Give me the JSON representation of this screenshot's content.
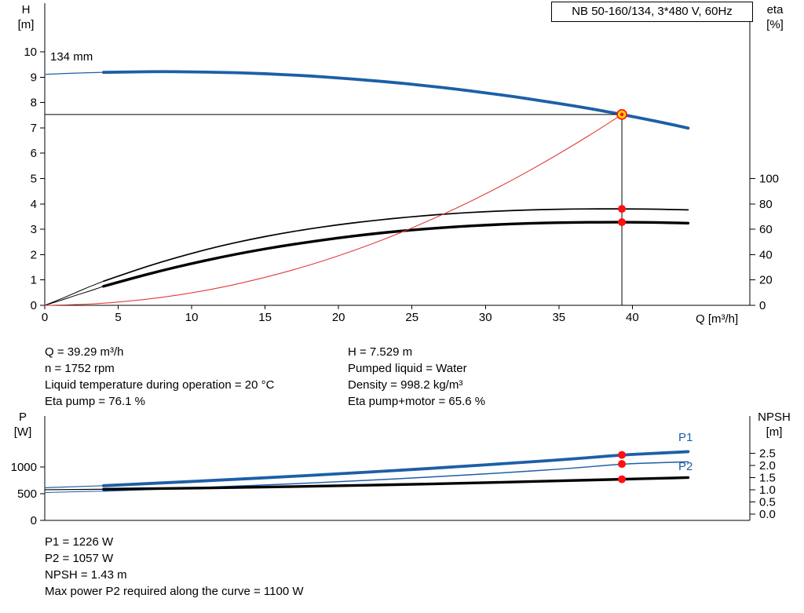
{
  "colors": {
    "blue": "#1d5fa7",
    "black": "#000000",
    "red_curve": "#e23b3b",
    "dot": "#ff0f0f",
    "duty_fill": "#ffd400",
    "axis": "#000000"
  },
  "info": {
    "top_left": [
      "Q = 39.29 m³/h",
      "n = 1752 rpm",
      "Liquid temperature during operation = 20 °C",
      "Eta pump = 76.1 %"
    ],
    "top_right": [
      "H = 7.529 m",
      "Pumped liquid = Water",
      "Density = 998.2 kg/m³",
      "Eta pump+motor = 65.6 %"
    ],
    "bottom": [
      "P1 = 1226 W",
      "P2 = 1057 W",
      "NPSH = 1.43 m",
      "Max power P2 required along the curve = 1100 W"
    ]
  },
  "chart_data": [
    {
      "type": "line",
      "id": "qh",
      "title": "NB 50-160/134, 3*480 V, 60Hz",
      "xlabel": "Q [m³/h]",
      "ylabel_left": [
        "H",
        "[m]"
      ],
      "ylabel_right": [
        "eta",
        "[%]"
      ],
      "xlim": [
        0,
        48
      ],
      "ylim_left": [
        0,
        11.92
      ],
      "ylim_right": [
        0,
        238.4
      ],
      "x_ticks": [
        {
          "v": 0,
          "t": "0"
        },
        {
          "v": 5,
          "t": "5"
        },
        {
          "v": 10,
          "t": "10"
        },
        {
          "v": 15,
          "t": "15"
        },
        {
          "v": 20,
          "t": "20"
        },
        {
          "v": 25,
          "t": "25"
        },
        {
          "v": 30,
          "t": "30"
        },
        {
          "v": 35,
          "t": "35"
        },
        {
          "v": 40,
          "t": "40"
        }
      ],
      "y_ticks_left": [
        {
          "v": 0,
          "t": "0"
        },
        {
          "v": 1,
          "t": "1"
        },
        {
          "v": 2,
          "t": "2"
        },
        {
          "v": 3,
          "t": "3"
        },
        {
          "v": 4,
          "t": "4"
        },
        {
          "v": 5,
          "t": "5"
        },
        {
          "v": 6,
          "t": "6"
        },
        {
          "v": 7,
          "t": "7"
        },
        {
          "v": 8,
          "t": "8"
        },
        {
          "v": 9,
          "t": "9"
        },
        {
          "v": 10,
          "t": "10"
        }
      ],
      "y_ticks_right": [
        {
          "v": 0,
          "t": "0"
        },
        {
          "v": 20,
          "t": "20"
        },
        {
          "v": 40,
          "t": "40"
        },
        {
          "v": 60,
          "t": "60"
        },
        {
          "v": 80,
          "t": "80"
        },
        {
          "v": 100,
          "t": "100"
        }
      ],
      "annotations": [
        {
          "text": "134 mm"
        }
      ],
      "duty_point": {
        "q": 39.29,
        "h": 7.529
      },
      "series": [
        {
          "name": "H",
          "axis": "left",
          "color": "#1d5fa7",
          "width": 3.8,
          "lead_width": 1.2,
          "lead_points": [
            [
              0,
              9.11
            ],
            [
              2,
              9.16
            ],
            [
              4,
              9.19
            ]
          ],
          "points": [
            [
              4,
              9.19
            ],
            [
              6,
              9.21
            ],
            [
              8,
              9.22
            ],
            [
              10,
              9.21
            ],
            [
              12,
              9.19
            ],
            [
              14,
              9.16
            ],
            [
              16,
              9.11
            ],
            [
              18,
              9.05
            ],
            [
              20,
              8.97
            ],
            [
              22,
              8.88
            ],
            [
              24,
              8.78
            ],
            [
              26,
              8.66
            ],
            [
              28,
              8.53
            ],
            [
              30,
              8.38
            ],
            [
              32,
              8.23
            ],
            [
              34,
              8.05
            ],
            [
              36,
              7.87
            ],
            [
              38,
              7.67
            ],
            [
              39.29,
              7.53
            ],
            [
              40,
              7.45
            ],
            [
              42,
              7.22
            ],
            [
              43.8,
              6.99
            ]
          ]
        },
        {
          "name": "Eta pump",
          "axis": "right",
          "color": "#000000",
          "width": 1.7,
          "lead_width": 1.0,
          "lead_points": [
            [
              0,
              0
            ],
            [
              1,
              4.5
            ],
            [
              2,
              9.5
            ],
            [
              3,
              14.5
            ],
            [
              4,
              19
            ]
          ],
          "points": [
            [
              4,
              19
            ],
            [
              6,
              27
            ],
            [
              8,
              34.5
            ],
            [
              10,
              41
            ],
            [
              12,
              47
            ],
            [
              14,
              52
            ],
            [
              16,
              56.5
            ],
            [
              18,
              60.3
            ],
            [
              20,
              63.6
            ],
            [
              22,
              66.4
            ],
            [
              24,
              68.8
            ],
            [
              26,
              70.9
            ],
            [
              28,
              72.6
            ],
            [
              30,
              73.9
            ],
            [
              32,
              74.9
            ],
            [
              34,
              75.6
            ],
            [
              36,
              76
            ],
            [
              38,
              76.1
            ],
            [
              40,
              76.1
            ],
            [
              42,
              75.8
            ],
            [
              43.8,
              75.3
            ]
          ]
        },
        {
          "name": "Eta pump+motor",
          "axis": "right",
          "color": "#000000",
          "width": 3.4,
          "lead_width": 1.0,
          "lead_points": [
            [
              0,
              0
            ],
            [
              1,
              3.5
            ],
            [
              2,
              7.5
            ],
            [
              3,
              11
            ],
            [
              4,
              15
            ]
          ],
          "points": [
            [
              4,
              15
            ],
            [
              6,
              21.5
            ],
            [
              8,
              27.5
            ],
            [
              10,
              33
            ],
            [
              12,
              38
            ],
            [
              14,
              42.5
            ],
            [
              16,
              46.5
            ],
            [
              18,
              50
            ],
            [
              20,
              53.2
            ],
            [
              22,
              56
            ],
            [
              24,
              58.4
            ],
            [
              26,
              60.4
            ],
            [
              28,
              62
            ],
            [
              30,
              63.3
            ],
            [
              32,
              64.3
            ],
            [
              34,
              65
            ],
            [
              36,
              65.4
            ],
            [
              38,
              65.6
            ],
            [
              40,
              65.6
            ],
            [
              42,
              65.3
            ],
            [
              43.8,
              64.8
            ]
          ]
        },
        {
          "name": "System curve",
          "axis": "left",
          "color": "#e23b3b",
          "width": 1.1,
          "points": [
            [
              0,
              0
            ],
            [
              2,
              0.02
            ],
            [
              4,
              0.08
            ],
            [
              6,
              0.18
            ],
            [
              8,
              0.31
            ],
            [
              10,
              0.49
            ],
            [
              12,
              0.7
            ],
            [
              14,
              0.96
            ],
            [
              16,
              1.25
            ],
            [
              18,
              1.58
            ],
            [
              20,
              1.95
            ],
            [
              22,
              2.36
            ],
            [
              24,
              2.81
            ],
            [
              26,
              3.3
            ],
            [
              28,
              3.82
            ],
            [
              30,
              4.39
            ],
            [
              32,
              4.99
            ],
            [
              34,
              5.64
            ],
            [
              36,
              6.32
            ],
            [
              38,
              7.04
            ],
            [
              39.29,
              7.53
            ]
          ]
        }
      ],
      "markers": [
        {
          "q": 39.29,
          "val": 7.529,
          "axis": "left",
          "style": "duty"
        },
        {
          "q": 39.29,
          "val": 76.1,
          "axis": "right",
          "style": "dot"
        },
        {
          "q": 39.29,
          "val": 65.6,
          "axis": "right",
          "style": "dot"
        }
      ]
    },
    {
      "type": "line",
      "id": "power",
      "xlabel": "",
      "ylabel_left": [
        "P",
        "[W]"
      ],
      "ylabel_right": [
        "NPSH",
        "[m]"
      ],
      "xlim": [
        0,
        48
      ],
      "ylim_left": [
        0,
        1956
      ],
      "ylim_right": [
        -0.26,
        4.03
      ],
      "x_ticks": [],
      "y_ticks_left": [
        {
          "v": 0,
          "t": "0"
        },
        {
          "v": 500,
          "t": "500"
        },
        {
          "v": 1000,
          "t": "1000"
        }
      ],
      "y_ticks_right": [
        {
          "v": 0,
          "t": "0.0"
        },
        {
          "v": 0.5,
          "t": "0.5"
        },
        {
          "v": 1,
          "t": "1.0"
        },
        {
          "v": 1.5,
          "t": "1.5"
        },
        {
          "v": 2,
          "t": "2.0"
        },
        {
          "v": 2.5,
          "t": "2.5"
        }
      ],
      "series": [
        {
          "name": "P1",
          "axis": "left",
          "color": "#1d5fa7",
          "width": 3.8,
          "lead_width": 1.2,
          "lead_points": [
            [
              0,
              612
            ],
            [
              2,
              632
            ],
            [
              4,
              650
            ]
          ],
          "points": [
            [
              4,
              650
            ],
            [
              8,
              702
            ],
            [
              12,
              756
            ],
            [
              16,
              812
            ],
            [
              20,
              872
            ],
            [
              24,
              936
            ],
            [
              28,
              1004
            ],
            [
              32,
              1076
            ],
            [
              36,
              1152
            ],
            [
              39.29,
              1226
            ],
            [
              42,
              1262
            ],
            [
              43.8,
              1288
            ]
          ]
        },
        {
          "name": "P2",
          "axis": "left",
          "color": "#1d5fa7",
          "width": 1.5,
          "lead_width": 1.0,
          "lead_points": [
            [
              0,
              522
            ],
            [
              2,
              535
            ],
            [
              4,
              548
            ]
          ],
          "points": [
            [
              4,
              548
            ],
            [
              8,
              588
            ],
            [
              12,
              630
            ],
            [
              16,
              675
            ],
            [
              20,
              724
            ],
            [
              24,
              778
            ],
            [
              28,
              838
            ],
            [
              32,
              904
            ],
            [
              36,
              978
            ],
            [
              39.29,
              1057
            ],
            [
              42,
              1082
            ],
            [
              43.8,
              1098
            ]
          ]
        },
        {
          "name": "NPSH",
          "axis": "right",
          "color": "#000000",
          "width": 3.4,
          "lead_width": 1.2,
          "lead_points": [
            [
              0,
              1.0
            ],
            [
              2,
              1.01
            ],
            [
              4,
              1.02
            ]
          ],
          "points": [
            [
              4,
              1.02
            ],
            [
              8,
              1.05
            ],
            [
              12,
              1.08
            ],
            [
              16,
              1.12
            ],
            [
              20,
              1.16
            ],
            [
              24,
              1.21
            ],
            [
              28,
              1.26
            ],
            [
              32,
              1.32
            ],
            [
              36,
              1.38
            ],
            [
              39.29,
              1.43
            ],
            [
              42,
              1.47
            ],
            [
              43.8,
              1.5
            ]
          ]
        }
      ],
      "markers": [
        {
          "q": 39.29,
          "val": 1226,
          "axis": "left",
          "style": "dot"
        },
        {
          "q": 39.29,
          "val": 1057,
          "axis": "left",
          "style": "dot"
        },
        {
          "q": 39.29,
          "val": 1.43,
          "axis": "right",
          "style": "dot"
        }
      ]
    }
  ]
}
